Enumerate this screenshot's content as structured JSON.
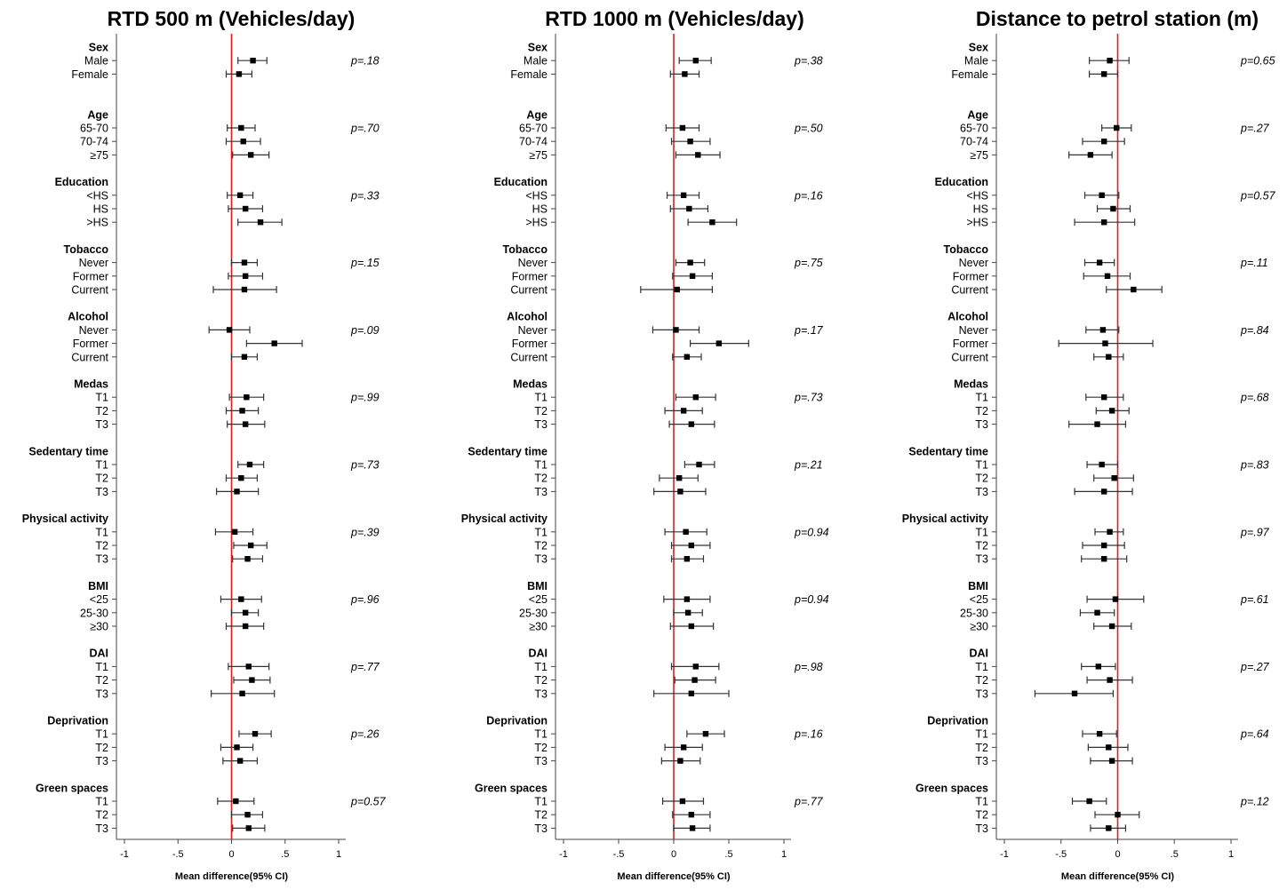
{
  "chart_data": [
    {
      "type": "forest",
      "title": "RTD 500 m (Vehicles/day)",
      "xlabel": "Mean difference(95% CI)",
      "xlim": [
        -1,
        1
      ],
      "xticks": [
        -1,
        -0.5,
        0,
        0.5,
        1
      ],
      "xtick_labels": [
        "-1",
        "-.5",
        "0",
        ".5",
        "1"
      ],
      "reference_line": 0,
      "reference_color": "#e8191b",
      "groups": [
        {
          "name": "Sex",
          "p": "p=.18",
          "rows": [
            {
              "label": "Male",
              "est": 0.2,
              "lo": 0.06,
              "hi": 0.33
            },
            {
              "label": "Female",
              "est": 0.07,
              "lo": -0.05,
              "hi": 0.19
            }
          ]
        },
        {
          "name": "Age",
          "p": "p=.70",
          "rows": [
            {
              "label": "65-70",
              "est": 0.09,
              "lo": -0.04,
              "hi": 0.22
            },
            {
              "label": "70-74",
              "est": 0.11,
              "lo": -0.05,
              "hi": 0.27
            },
            {
              "label": "≥75",
              "est": 0.18,
              "lo": 0.01,
              "hi": 0.35
            }
          ]
        },
        {
          "name": "Education",
          "p": "p=.33",
          "rows": [
            {
              "label": "<HS",
              "est": 0.08,
              "lo": -0.04,
              "hi": 0.2
            },
            {
              "label": "HS",
              "est": 0.13,
              "lo": -0.03,
              "hi": 0.29
            },
            {
              "label": ">HS",
              "est": 0.27,
              "lo": 0.06,
              "hi": 0.47
            }
          ]
        },
        {
          "name": "Tobacco",
          "p": "p=.15",
          "rows": [
            {
              "label": "Never",
              "est": 0.12,
              "lo": 0.0,
              "hi": 0.24
            },
            {
              "label": "Former",
              "est": 0.13,
              "lo": -0.03,
              "hi": 0.29
            },
            {
              "label": "Current",
              "est": 0.12,
              "lo": -0.17,
              "hi": 0.42
            }
          ]
        },
        {
          "name": "Alcohol",
          "p": "p=.09",
          "rows": [
            {
              "label": "Never",
              "est": -0.02,
              "lo": -0.21,
              "hi": 0.17
            },
            {
              "label": "Former",
              "est": 0.4,
              "lo": 0.14,
              "hi": 0.66
            },
            {
              "label": "Current",
              "est": 0.12,
              "lo": 0.0,
              "hi": 0.24
            }
          ]
        },
        {
          "name": "Medas",
          "p": "p=.99",
          "rows": [
            {
              "label": "T1",
              "est": 0.14,
              "lo": -0.02,
              "hi": 0.3
            },
            {
              "label": "T2",
              "est": 0.1,
              "lo": -0.05,
              "hi": 0.25
            },
            {
              "label": "T3",
              "est": 0.13,
              "lo": -0.04,
              "hi": 0.31
            }
          ]
        },
        {
          "name": "Sedentary time",
          "p": "p=.73",
          "rows": [
            {
              "label": "T1",
              "est": 0.17,
              "lo": 0.06,
              "hi": 0.3
            },
            {
              "label": "T2",
              "est": 0.09,
              "lo": -0.05,
              "hi": 0.24
            },
            {
              "label": "T3",
              "est": 0.05,
              "lo": -0.14,
              "hi": 0.25
            }
          ]
        },
        {
          "name": "Physical activity",
          "p": "p=.39",
          "rows": [
            {
              "label": "T1",
              "est": 0.03,
              "lo": -0.15,
              "hi": 0.2
            },
            {
              "label": "T2",
              "est": 0.18,
              "lo": 0.02,
              "hi": 0.33
            },
            {
              "label": "T3",
              "est": 0.15,
              "lo": 0.01,
              "hi": 0.29
            }
          ]
        },
        {
          "name": "BMI",
          "p": "p=.96",
          "rows": [
            {
              "label": "<25",
              "est": 0.09,
              "lo": -0.1,
              "hi": 0.28
            },
            {
              "label": "25-30",
              "est": 0.13,
              "lo": 0.0,
              "hi": 0.25
            },
            {
              "label": "≥30",
              "est": 0.13,
              "lo": -0.05,
              "hi": 0.3
            }
          ]
        },
        {
          "name": "DAI",
          "p": "p=.77",
          "rows": [
            {
              "label": "T1",
              "est": 0.16,
              "lo": -0.03,
              "hi": 0.35
            },
            {
              "label": "T2",
              "est": 0.19,
              "lo": 0.02,
              "hi": 0.36
            },
            {
              "label": "T3",
              "est": 0.1,
              "lo": -0.19,
              "hi": 0.4
            }
          ]
        },
        {
          "name": "Deprivation",
          "p": "p=.26",
          "rows": [
            {
              "label": "T1",
              "est": 0.22,
              "lo": 0.07,
              "hi": 0.37
            },
            {
              "label": "T2",
              "est": 0.05,
              "lo": -0.1,
              "hi": 0.2
            },
            {
              "label": "T3",
              "est": 0.08,
              "lo": -0.08,
              "hi": 0.24
            }
          ]
        },
        {
          "name": "Green spaces",
          "p": "p=0.57",
          "rows": [
            {
              "label": "T1",
              "est": 0.04,
              "lo": -0.13,
              "hi": 0.21
            },
            {
              "label": "T2",
              "est": 0.15,
              "lo": 0.0,
              "hi": 0.29
            },
            {
              "label": "T3",
              "est": 0.16,
              "lo": 0.01,
              "hi": 0.31
            }
          ]
        }
      ]
    },
    {
      "type": "forest",
      "title": "RTD 1000 m (Vehicles/day)",
      "xlabel": "Mean difference(95% CI)",
      "xlim": [
        -1,
        1
      ],
      "xticks": [
        -1,
        -0.5,
        0,
        0.5,
        1
      ],
      "xtick_labels": [
        "-1",
        "-.5",
        "0",
        ".5",
        "1"
      ],
      "reference_line": 0,
      "reference_color": "#e8191b",
      "groups": [
        {
          "name": "Sex",
          "p": "p=.38",
          "rows": [
            {
              "label": "Male",
              "est": 0.2,
              "lo": 0.05,
              "hi": 0.34
            },
            {
              "label": "Female",
              "est": 0.1,
              "lo": -0.03,
              "hi": 0.23
            }
          ]
        },
        {
          "name": "Age",
          "p": "p=.50",
          "rows": [
            {
              "label": "65-70",
              "est": 0.08,
              "lo": -0.07,
              "hi": 0.23
            },
            {
              "label": "70-74",
              "est": 0.15,
              "lo": -0.02,
              "hi": 0.33
            },
            {
              "label": "≥75",
              "est": 0.22,
              "lo": 0.02,
              "hi": 0.42
            }
          ]
        },
        {
          "name": "Education",
          "p": "p=.16",
          "rows": [
            {
              "label": "<HS",
              "est": 0.09,
              "lo": -0.06,
              "hi": 0.23
            },
            {
              "label": "HS",
              "est": 0.14,
              "lo": -0.03,
              "hi": 0.31
            },
            {
              "label": ">HS",
              "est": 0.35,
              "lo": 0.13,
              "hi": 0.57
            }
          ]
        },
        {
          "name": "Tobacco",
          "p": "p=.75",
          "rows": [
            {
              "label": "Never",
              "est": 0.15,
              "lo": 0.02,
              "hi": 0.28
            },
            {
              "label": "Former",
              "est": 0.17,
              "lo": -0.01,
              "hi": 0.35
            },
            {
              "label": "Current",
              "est": 0.03,
              "lo": -0.3,
              "hi": 0.35
            }
          ]
        },
        {
          "name": "Alcohol",
          "p": "p=.17",
          "rows": [
            {
              "label": "Never",
              "est": 0.02,
              "lo": -0.19,
              "hi": 0.23
            },
            {
              "label": "Former",
              "est": 0.41,
              "lo": 0.15,
              "hi": 0.68
            },
            {
              "label": "Current",
              "est": 0.12,
              "lo": -0.01,
              "hi": 0.25
            }
          ]
        },
        {
          "name": "Medas",
          "p": "p=.73",
          "rows": [
            {
              "label": "T1",
              "est": 0.2,
              "lo": 0.02,
              "hi": 0.38
            },
            {
              "label": "T2",
              "est": 0.09,
              "lo": -0.08,
              "hi": 0.26
            },
            {
              "label": "T3",
              "est": 0.16,
              "lo": -0.04,
              "hi": 0.37
            }
          ]
        },
        {
          "name": "Sedentary time",
          "p": "p=.21",
          "rows": [
            {
              "label": "T1",
              "est": 0.23,
              "lo": 0.1,
              "hi": 0.37
            },
            {
              "label": "T2",
              "est": 0.05,
              "lo": -0.13,
              "hi": 0.22
            },
            {
              "label": "T3",
              "est": 0.06,
              "lo": -0.18,
              "hi": 0.29
            }
          ]
        },
        {
          "name": "Physical activity",
          "p": "p=0.94",
          "rows": [
            {
              "label": "T1",
              "est": 0.11,
              "lo": -0.08,
              "hi": 0.3
            },
            {
              "label": "T2",
              "est": 0.16,
              "lo": -0.02,
              "hi": 0.33
            },
            {
              "label": "T3",
              "est": 0.12,
              "lo": -0.02,
              "hi": 0.27
            }
          ]
        },
        {
          "name": "BMI",
          "p": "p=0.94",
          "rows": [
            {
              "label": "<25",
              "est": 0.12,
              "lo": -0.09,
              "hi": 0.33
            },
            {
              "label": "25-30",
              "est": 0.13,
              "lo": 0.0,
              "hi": 0.26
            },
            {
              "label": "≥30",
              "est": 0.16,
              "lo": -0.03,
              "hi": 0.36
            }
          ]
        },
        {
          "name": "DAI",
          "p": "p=.98",
          "rows": [
            {
              "label": "T1",
              "est": 0.2,
              "lo": -0.02,
              "hi": 0.41
            },
            {
              "label": "T2",
              "est": 0.19,
              "lo": 0.01,
              "hi": 0.38
            },
            {
              "label": "T3",
              "est": 0.16,
              "lo": -0.18,
              "hi": 0.5
            }
          ]
        },
        {
          "name": "Deprivation",
          "p": "p=.16",
          "rows": [
            {
              "label": "T1",
              "est": 0.29,
              "lo": 0.12,
              "hi": 0.46
            },
            {
              "label": "T2",
              "est": 0.09,
              "lo": -0.08,
              "hi": 0.26
            },
            {
              "label": "T3",
              "est": 0.06,
              "lo": -0.11,
              "hi": 0.24
            }
          ]
        },
        {
          "name": "Green spaces",
          "p": "p=.77",
          "rows": [
            {
              "label": "T1",
              "est": 0.08,
              "lo": -0.1,
              "hi": 0.27
            },
            {
              "label": "T2",
              "est": 0.16,
              "lo": -0.01,
              "hi": 0.33
            },
            {
              "label": "T3",
              "est": 0.17,
              "lo": 0.0,
              "hi": 0.33
            }
          ]
        }
      ]
    },
    {
      "type": "forest",
      "title": "Distance to petrol station (m)",
      "xlabel": "Mean difference(95% CI)",
      "xlim": [
        -1,
        1
      ],
      "xticks": [
        -1,
        -0.5,
        0,
        0.5,
        1
      ],
      "xtick_labels": [
        "-1",
        "-.5",
        "0",
        ".5",
        "1"
      ],
      "reference_line": 0,
      "reference_color": "#e8191b",
      "groups": [
        {
          "name": "Sex",
          "p": "p=0.65",
          "rows": [
            {
              "label": "Male",
              "est": -0.07,
              "lo": -0.25,
              "hi": 0.1
            },
            {
              "label": "Female",
              "est": -0.12,
              "lo": -0.25,
              "hi": 0.0
            }
          ]
        },
        {
          "name": "Age",
          "p": "p=.27",
          "rows": [
            {
              "label": "65-70",
              "est": -0.01,
              "lo": -0.14,
              "hi": 0.12
            },
            {
              "label": "70-74",
              "est": -0.12,
              "lo": -0.31,
              "hi": 0.06
            },
            {
              "label": "≥75",
              "est": -0.24,
              "lo": -0.43,
              "hi": -0.05
            }
          ]
        },
        {
          "name": "Education",
          "p": "p=0.57",
          "rows": [
            {
              "label": "<HS",
              "est": -0.14,
              "lo": -0.29,
              "hi": 0.01
            },
            {
              "label": "HS",
              "est": -0.04,
              "lo": -0.18,
              "hi": 0.11
            },
            {
              "label": ">HS",
              "est": -0.12,
              "lo": -0.38,
              "hi": 0.15
            }
          ]
        },
        {
          "name": "Tobacco",
          "p": "p=.11",
          "rows": [
            {
              "label": "Never",
              "est": -0.16,
              "lo": -0.29,
              "hi": -0.03
            },
            {
              "label": "Former",
              "est": -0.09,
              "lo": -0.3,
              "hi": 0.11
            },
            {
              "label": "Current",
              "est": 0.14,
              "lo": -0.1,
              "hi": 0.39
            }
          ]
        },
        {
          "name": "Alcohol",
          "p": "p=.84",
          "rows": [
            {
              "label": "Never",
              "est": -0.13,
              "lo": -0.28,
              "hi": 0.01
            },
            {
              "label": "Former",
              "est": -0.11,
              "lo": -0.52,
              "hi": 0.31
            },
            {
              "label": "Current",
              "est": -0.08,
              "lo": -0.21,
              "hi": 0.05
            }
          ]
        },
        {
          "name": "Medas",
          "p": "p=.68",
          "rows": [
            {
              "label": "T1",
              "est": -0.12,
              "lo": -0.28,
              "hi": 0.05
            },
            {
              "label": "T2",
              "est": -0.05,
              "lo": -0.19,
              "hi": 0.1
            },
            {
              "label": "T3",
              "est": -0.18,
              "lo": -0.43,
              "hi": 0.07
            }
          ]
        },
        {
          "name": "Sedentary time",
          "p": "p=.83",
          "rows": [
            {
              "label": "T1",
              "est": -0.14,
              "lo": -0.27,
              "hi": 0.0
            },
            {
              "label": "T2",
              "est": -0.03,
              "lo": -0.21,
              "hi": 0.14
            },
            {
              "label": "T3",
              "est": -0.12,
              "lo": -0.38,
              "hi": 0.13
            }
          ]
        },
        {
          "name": "Physical activity",
          "p": "p=.97",
          "rows": [
            {
              "label": "T1",
              "est": -0.07,
              "lo": -0.2,
              "hi": 0.05
            },
            {
              "label": "T2",
              "est": -0.12,
              "lo": -0.31,
              "hi": 0.06
            },
            {
              "label": "T3",
              "est": -0.12,
              "lo": -0.32,
              "hi": 0.08
            }
          ]
        },
        {
          "name": "BMI",
          "p": "p=.61",
          "rows": [
            {
              "label": "<25",
              "est": -0.02,
              "lo": -0.27,
              "hi": 0.23
            },
            {
              "label": "25-30",
              "est": -0.18,
              "lo": -0.33,
              "hi": -0.03
            },
            {
              "label": "≥30",
              "est": -0.05,
              "lo": -0.21,
              "hi": 0.12
            }
          ]
        },
        {
          "name": "DAI",
          "p": "p=.27",
          "rows": [
            {
              "label": "T1",
              "est": -0.17,
              "lo": -0.32,
              "hi": -0.02
            },
            {
              "label": "T2",
              "est": -0.07,
              "lo": -0.27,
              "hi": 0.13
            },
            {
              "label": "T3",
              "est": -0.38,
              "lo": -0.73,
              "hi": -0.04
            }
          ]
        },
        {
          "name": "Deprivation",
          "p": "p=.64",
          "rows": [
            {
              "label": "T1",
              "est": -0.16,
              "lo": -0.31,
              "hi": -0.01
            },
            {
              "label": "T2",
              "est": -0.08,
              "lo": -0.26,
              "hi": 0.09
            },
            {
              "label": "T3",
              "est": -0.05,
              "lo": -0.24,
              "hi": 0.13
            }
          ]
        },
        {
          "name": "Green spaces",
          "p": "p=.12",
          "rows": [
            {
              "label": "T1",
              "est": -0.25,
              "lo": -0.4,
              "hi": -0.1
            },
            {
              "label": "T2",
              "est": 0.0,
              "lo": -0.2,
              "hi": 0.19
            },
            {
              "label": "T3",
              "est": -0.08,
              "lo": -0.24,
              "hi": 0.07
            }
          ]
        }
      ]
    }
  ]
}
